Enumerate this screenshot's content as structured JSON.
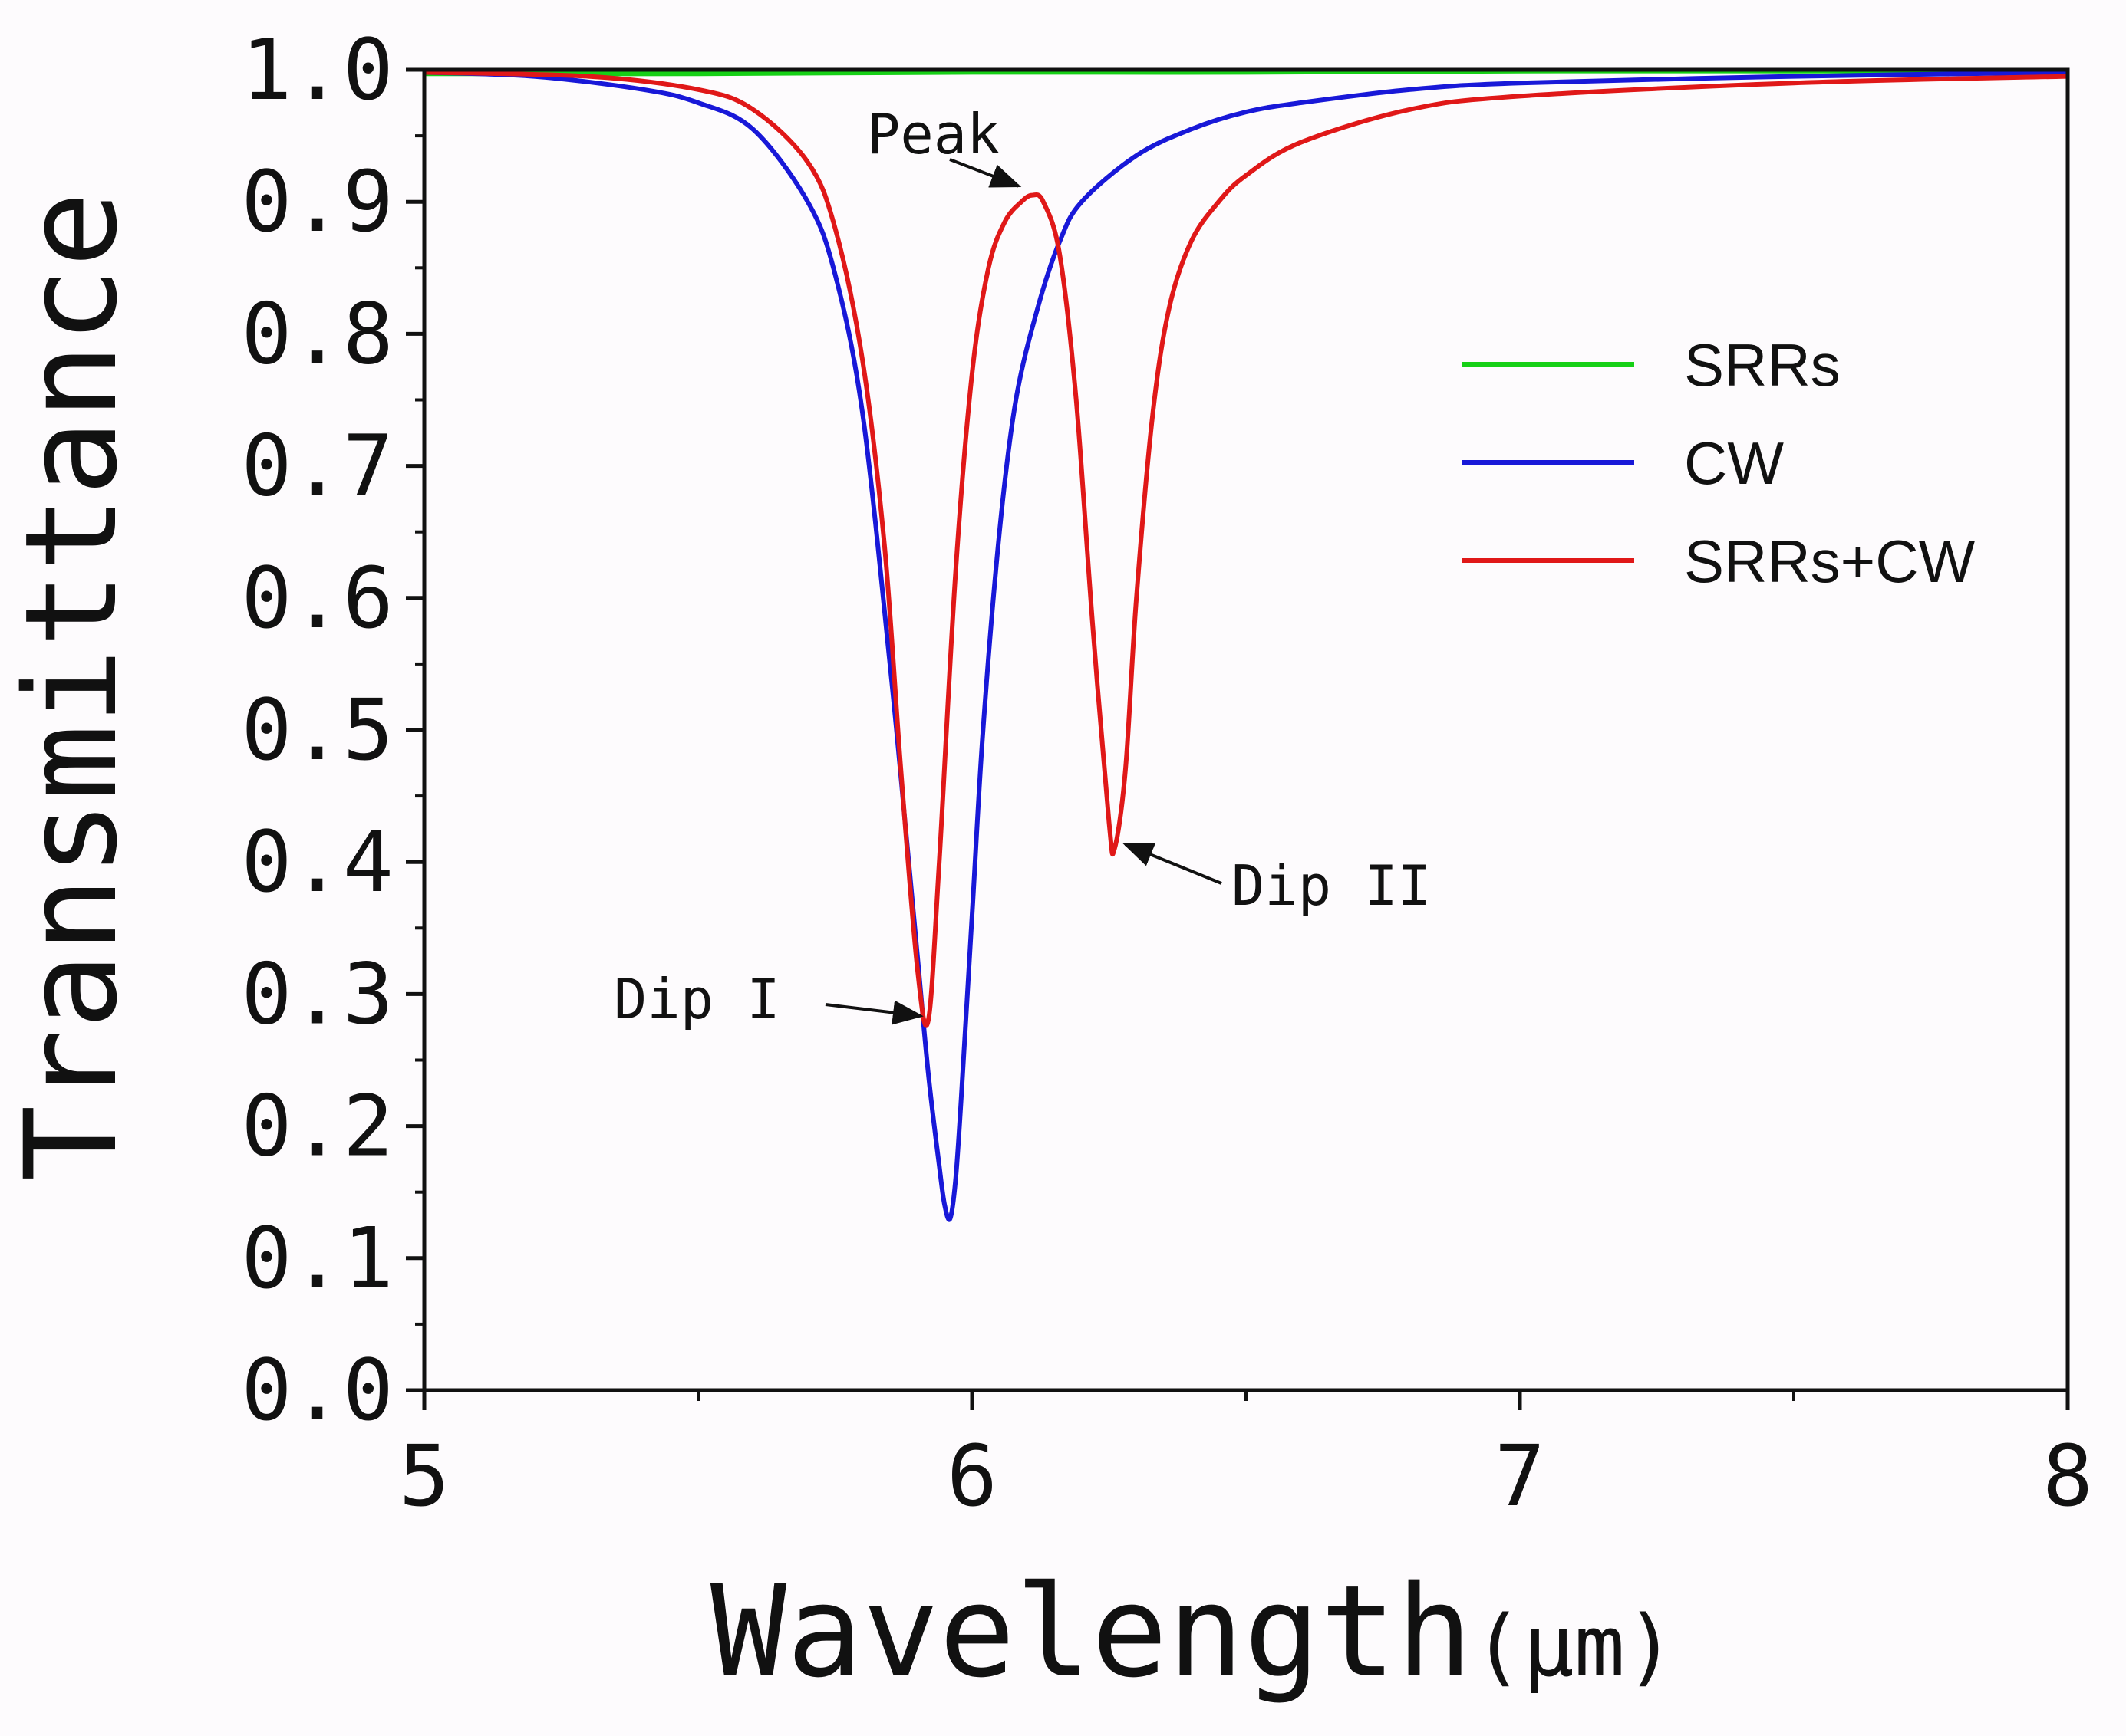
{
  "chart_data": {
    "type": "line",
    "title": "",
    "xlabel": "Wavelength",
    "xlabel_unit": "(μm)",
    "ylabel": "Transmittance",
    "xlim": [
      5,
      8
    ],
    "ylim": [
      0,
      1
    ],
    "x_ticks": [
      "5",
      "6",
      "7",
      "8"
    ],
    "y_ticks": [
      "0.0",
      "0.1",
      "0.2",
      "0.3",
      "0.4",
      "0.5",
      "0.6",
      "0.7",
      "0.8",
      "0.9",
      "1.0"
    ],
    "grid": false,
    "legend_position": "right",
    "series": [
      {
        "name": "SRRs",
        "color": "#16d016",
        "x": [
          5.0,
          5.5,
          6.0,
          6.5,
          7.0,
          7.5,
          8.0
        ],
        "y": [
          0.997,
          0.997,
          0.998,
          0.998,
          0.999,
          0.999,
          0.999
        ]
      },
      {
        "name": "CW",
        "color": "#1818d8",
        "x": [
          5.0,
          5.2,
          5.4,
          5.5,
          5.6,
          5.7,
          5.75,
          5.8,
          5.85,
          5.88,
          5.9,
          5.92,
          5.94,
          5.95,
          5.96,
          5.97,
          5.98,
          6.0,
          6.02,
          6.05,
          6.08,
          6.12,
          6.16,
          6.2,
          6.3,
          6.4,
          6.5,
          6.6,
          6.8,
          7.0,
          7.5,
          8.0
        ],
        "y": [
          0.998,
          0.995,
          0.985,
          0.975,
          0.955,
          0.9,
          0.845,
          0.74,
          0.55,
          0.42,
          0.33,
          0.24,
          0.17,
          0.14,
          0.13,
          0.16,
          0.22,
          0.36,
          0.5,
          0.65,
          0.75,
          0.82,
          0.87,
          0.9,
          0.935,
          0.955,
          0.968,
          0.975,
          0.985,
          0.99,
          0.995,
          0.998
        ]
      },
      {
        "name": "SRRs+CW",
        "color": "#e01818",
        "x": [
          5.0,
          5.3,
          5.5,
          5.6,
          5.7,
          5.75,
          5.8,
          5.84,
          5.87,
          5.9,
          5.92,
          5.94,
          5.97,
          6.0,
          6.03,
          6.06,
          6.09,
          6.11,
          6.13,
          6.16,
          6.19,
          6.22,
          6.25,
          6.26,
          6.28,
          6.3,
          6.33,
          6.36,
          6.4,
          6.45,
          6.5,
          6.6,
          6.8,
          7.0,
          7.5,
          8.0
        ],
        "y": [
          0.998,
          0.995,
          0.985,
          0.97,
          0.93,
          0.88,
          0.78,
          0.64,
          0.47,
          0.32,
          0.28,
          0.4,
          0.62,
          0.77,
          0.85,
          0.885,
          0.9,
          0.905,
          0.9,
          0.86,
          0.75,
          0.58,
          0.43,
          0.41,
          0.47,
          0.6,
          0.74,
          0.82,
          0.87,
          0.9,
          0.92,
          0.945,
          0.97,
          0.98,
          0.99,
          0.995
        ]
      }
    ],
    "annotations": [
      {
        "text": "Peak",
        "x": 6.11,
        "y": 0.905
      },
      {
        "text": "Dip I",
        "x": 5.92,
        "y": 0.28
      },
      {
        "text": "Dip II",
        "x": 6.26,
        "y": 0.41
      }
    ]
  }
}
